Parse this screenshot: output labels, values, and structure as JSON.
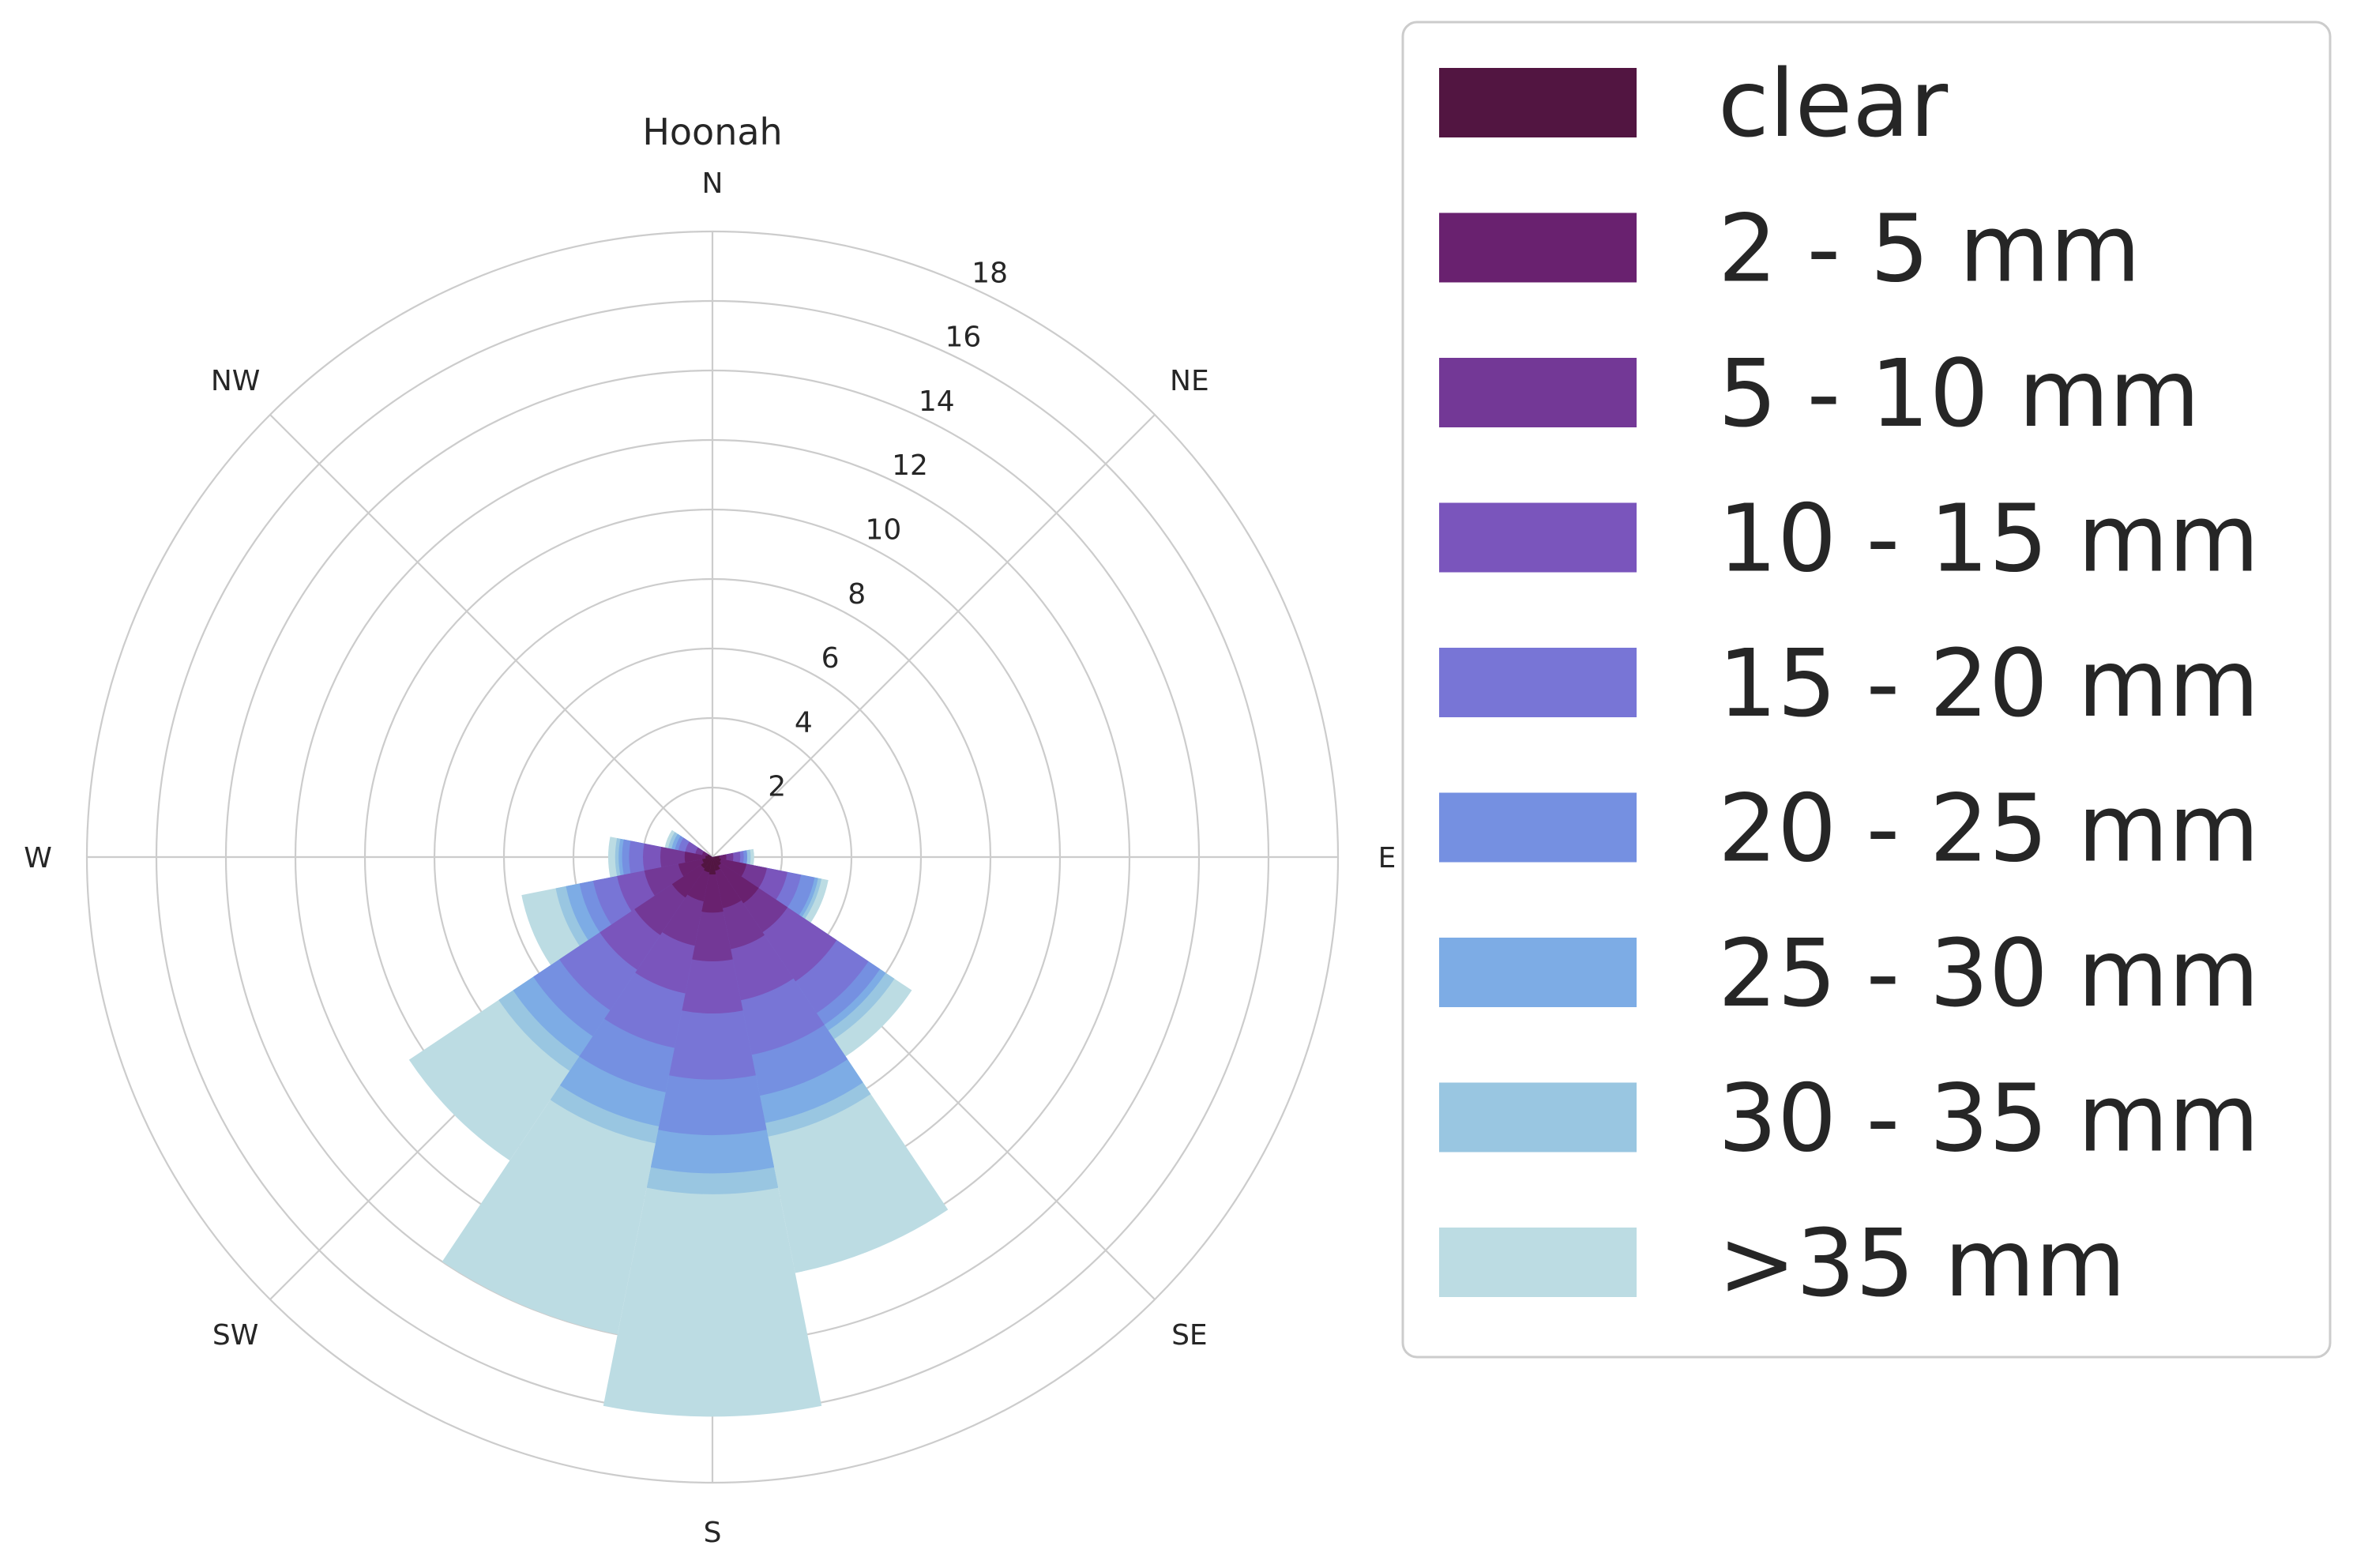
{
  "chart_data": {
    "type": "polar-bar (wind rose)",
    "title": "Hoonah",
    "direction_labels": [
      "N",
      "NE",
      "E",
      "SE",
      "S",
      "SW",
      "W",
      "NW"
    ],
    "radial_ticks": [
      "2",
      "4",
      "6",
      "8",
      "10",
      "12",
      "14",
      "16",
      "18"
    ],
    "radial_tick_values": [
      2,
      4,
      6,
      8,
      10,
      12,
      14,
      16,
      18
    ],
    "rmax": 18,
    "directions_deg": [
      90,
      112.5,
      135,
      157.5,
      180,
      202.5,
      225,
      247.5,
      270,
      292.5
    ],
    "sector_width_deg": 22.5,
    "stack_note": "cumulative values (top of each band), sector order matches directions_deg",
    "series": [
      {
        "name": "clear",
        "color": "#521541",
        "values": [
          0.2,
          0.25,
          0.3,
          0.4,
          0.5,
          0.45,
          0.4,
          0.3,
          0.2,
          0.15
        ]
      },
      {
        "name": "2 - 5 mm",
        "color": "#69216f",
        "values": [
          0.4,
          1.0,
          1.6,
          1.5,
          1.6,
          1.3,
          1.4,
          1.0,
          0.8,
          0.3
        ]
      },
      {
        "name": "5 - 10 mm",
        "color": "#733896",
        "values": [
          0.6,
          1.6,
          2.6,
          2.7,
          3.0,
          2.6,
          2.7,
          2.0,
          1.5,
          0.5
        ]
      },
      {
        "name": "10 - 15 mm",
        "color": "#7a55bc",
        "values": [
          0.8,
          2.2,
          4.3,
          4.2,
          4.5,
          4.0,
          3.9,
          2.8,
          2.0,
          0.8
        ]
      },
      {
        "name": "15 - 20 mm",
        "color": "#7875d6",
        "values": [
          0.9,
          2.6,
          5.4,
          5.8,
          6.4,
          5.6,
          5.3,
          3.5,
          2.4,
          1.0
        ]
      },
      {
        "name": "20 - 25 mm",
        "color": "#7590e1",
        "values": [
          1.0,
          3.0,
          5.8,
          7.0,
          8.0,
          6.9,
          6.2,
          3.9,
          2.6,
          1.1
        ]
      },
      {
        "name": "25 - 30 mm",
        "color": "#7dace5",
        "values": [
          1.0,
          3.1,
          6.0,
          7.8,
          9.1,
          7.9,
          6.9,
          4.3,
          2.7,
          1.2
        ]
      },
      {
        "name": "30 - 35 mm",
        "color": "#99c6e1",
        "values": [
          1.1,
          3.2,
          6.3,
          8.2,
          9.7,
          8.4,
          7.4,
          4.6,
          2.8,
          1.3
        ]
      },
      {
        "name": ">35 mm",
        "color": "#bcdce3",
        "values": [
          1.2,
          3.4,
          6.9,
          12.2,
          16.1,
          14.0,
          10.5,
          5.6,
          3.0,
          1.4
        ]
      }
    ]
  }
}
